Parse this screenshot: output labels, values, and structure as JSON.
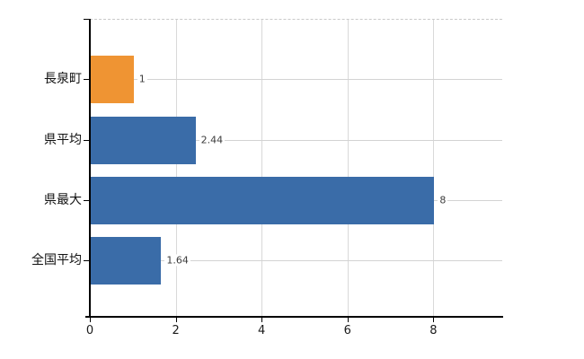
{
  "chart_data": {
    "type": "bar",
    "orientation": "horizontal",
    "title": "",
    "xlabel": "",
    "ylabel": "",
    "categories": [
      "長泉町",
      "県平均",
      "県最大",
      "全国平均"
    ],
    "values": [
      1,
      2.44,
      8,
      1.64
    ],
    "value_labels": [
      "1",
      "2.44",
      "8",
      "1.64"
    ],
    "bar_colors": [
      "#EF9433",
      "#3A6CA8",
      "#3A6CA8",
      "#3A6CA8"
    ],
    "x_ticks": [
      0,
      2,
      4,
      6,
      8
    ],
    "x_tick_labels": [
      "0",
      "2",
      "4",
      "6",
      "8"
    ],
    "xlim": [
      0,
      9.6
    ],
    "grid": true,
    "legend": false
  },
  "colors": {
    "bar_orange": "#EF9433",
    "bar_blue": "#3A6CA8",
    "axis": "#000000",
    "grid_vertical": "#d9d9d9",
    "grid_horizontal": "#d3d3d3",
    "top_border_dashed": "#c9c9c9",
    "category_label": "#111111",
    "value_label": "#3c3c3c",
    "tick_label": "#1a1a1a",
    "background": "#ffffff"
  }
}
